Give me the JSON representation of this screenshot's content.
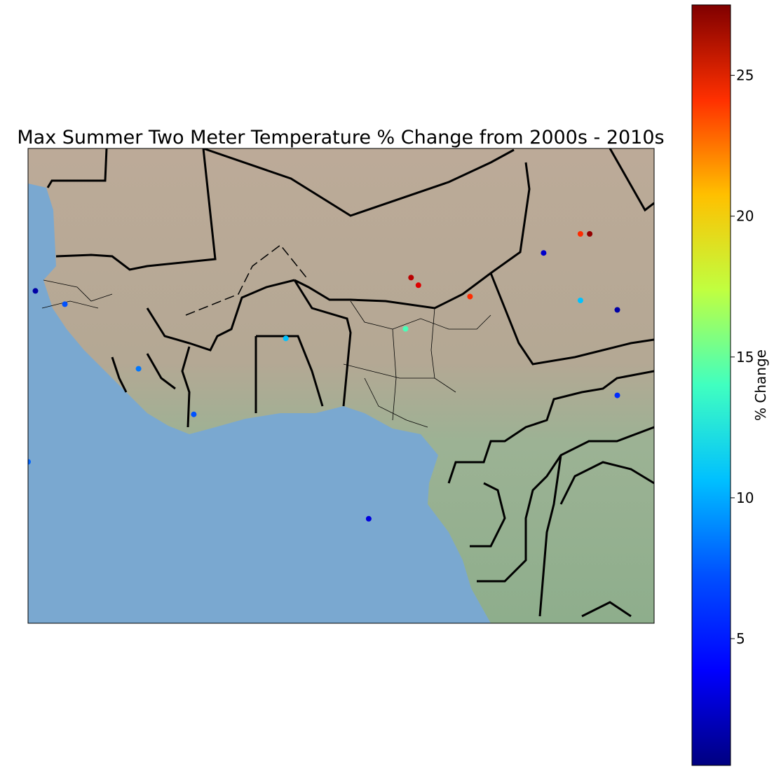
{
  "title": "Max Summer Two Meter Temperature % Change from 2000s - 2010s",
  "colorbar": {
    "label": "% Change",
    "min": 0.5,
    "max": 27.5,
    "ticks": [
      "5",
      "10",
      "15",
      "20",
      "25"
    ],
    "tick_values": [
      5,
      10,
      15,
      20,
      25
    ],
    "colormap": "jet",
    "stops": [
      "#000080",
      "#0000ff",
      "#0080ff",
      "#00ffff",
      "#80ff80",
      "#ffff00",
      "#ff8000",
      "#ff0000",
      "#800000"
    ]
  },
  "map": {
    "region": "West Africa",
    "colors": {
      "ocean": "#7aa8d0",
      "land_north": "#b8aa98",
      "land_south": "#93ad90",
      "borders": "#000000"
    }
  },
  "chart_data": {
    "type": "scatter",
    "title": "Max Summer Two Meter Temperature % Change from 2000s - 2010s",
    "color_variable": "% Change",
    "color_range": [
      0.5,
      27.5
    ],
    "ticks": [
      5,
      10,
      15,
      20,
      25
    ],
    "lon_range": [
      -18,
      16
    ],
    "lat_range": [
      -5,
      20
    ],
    "points": [
      {
        "lon": -17.6,
        "lat": 12.5,
        "value": 1.5
      },
      {
        "lon": -16.0,
        "lat": 11.8,
        "value": 6.0
      },
      {
        "lon": -12.0,
        "lat": 8.4,
        "value": 7.0
      },
      {
        "lon": -9.0,
        "lat": 6.0,
        "value": 6.0
      },
      {
        "lon": -4.0,
        "lat": 10.0,
        "value": 9.0
      },
      {
        "lon": 2.5,
        "lat": 10.5,
        "value": 12.5
      },
      {
        "lon": 2.8,
        "lat": 13.2,
        "value": 26.0
      },
      {
        "lon": 3.2,
        "lat": 12.8,
        "value": 25.0
      },
      {
        "lon": 6.0,
        "lat": 12.2,
        "value": 23.0
      },
      {
        "lon": 12.5,
        "lat": 15.5,
        "value": 27.0
      },
      {
        "lon": 12.0,
        "lat": 15.5,
        "value": 23.0
      },
      {
        "lon": 10.0,
        "lat": 14.5,
        "value": 2.5
      },
      {
        "lon": 14.0,
        "lat": 11.5,
        "value": 1.5
      },
      {
        "lon": -18.0,
        "lat": 3.5,
        "value": 6.5
      },
      {
        "lon": 0.5,
        "lat": 0.5,
        "value": 3.0
      },
      {
        "lon": 12.0,
        "lat": 12.0,
        "value": 9.0
      },
      {
        "lon": 14.0,
        "lat": 7.0,
        "value": 5.0
      }
    ]
  }
}
